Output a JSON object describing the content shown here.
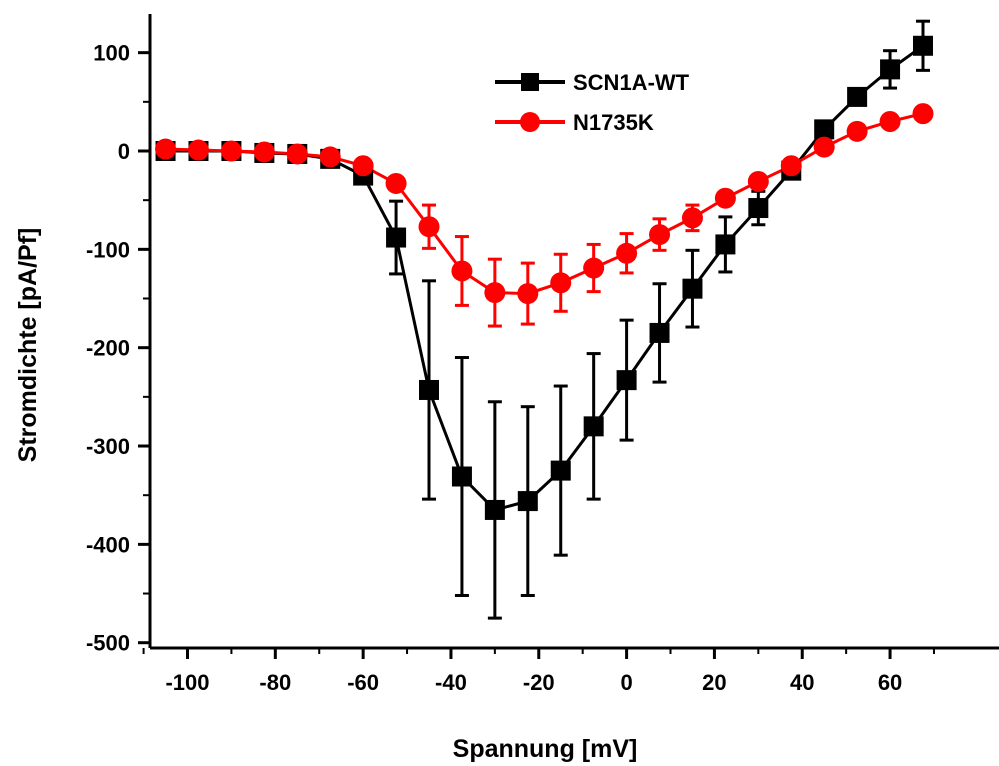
{
  "chart_data": {
    "type": "line",
    "title": "",
    "xlabel": "Spannung [mV]",
    "ylabel": "Stromdichte [pA/Pf]",
    "xlim": [
      -110,
      68
    ],
    "ylim": [
      -500,
      140
    ],
    "xticks": [
      -100,
      -80,
      -60,
      -40,
      -20,
      0,
      20,
      40,
      60
    ],
    "xtick_labels": [
      "-100",
      "-80",
      "-60",
      "-40",
      "-20",
      "0",
      "20",
      "40",
      "60"
    ],
    "yticks": [
      -500,
      -400,
      -300,
      -200,
      -100,
      0,
      100
    ],
    "ytick_labels": [
      "-500",
      "-400",
      "-300",
      "-200",
      "-100",
      "0",
      "100"
    ],
    "legend_position": "top-center",
    "x": [
      -105,
      -97.5,
      -90,
      -82.5,
      -75,
      -67.5,
      -60,
      -52.5,
      -45,
      -37.5,
      -30,
      -22.5,
      -15,
      -7.5,
      0,
      7.5,
      15,
      22.5,
      30,
      37.5,
      45,
      52.5,
      60,
      67.5
    ],
    "series": [
      {
        "name": "SCN1A-WT",
        "color": "#000000",
        "marker": "square",
        "values": [
          0,
          0,
          0,
          -2,
          -3,
          -8,
          -25,
          -88,
          -243,
          -331,
          -365,
          -356,
          -325,
          -280,
          -233,
          -185,
          -140,
          -95,
          -58,
          -20,
          22,
          55,
          83,
          107
        ],
        "errors": [
          0,
          0,
          0,
          0,
          0,
          0,
          5,
          37,
          111,
          121,
          110,
          96,
          86,
          74,
          61,
          50,
          39,
          28,
          17,
          0,
          0,
          0,
          19,
          25
        ]
      },
      {
        "name": "N1735K",
        "color": "#ff0000",
        "marker": "circle",
        "values": [
          2,
          1,
          0,
          -1,
          -3,
          -6,
          -15,
          -33,
          -77,
          -122,
          -144,
          -145,
          -134,
          -119,
          -104,
          -85,
          -68,
          -48,
          -31,
          -15,
          4,
          20,
          30,
          38
        ],
        "errors": [
          0,
          0,
          0,
          0,
          0,
          0,
          0,
          0,
          22,
          35,
          34,
          31,
          29,
          24,
          20,
          16,
          13,
          0,
          0,
          0,
          0,
          0,
          0,
          0
        ]
      }
    ]
  }
}
